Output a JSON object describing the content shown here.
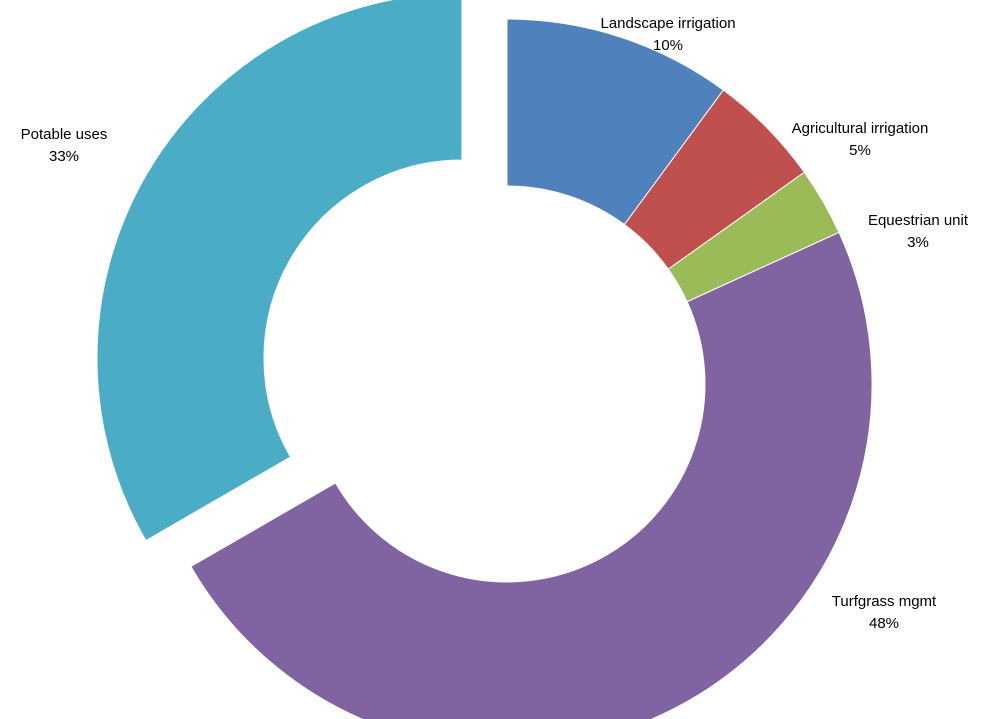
{
  "chart_data": {
    "type": "pie",
    "variant": "donut",
    "exploded": [
      "Potable uses"
    ],
    "title": "",
    "legend": "none",
    "categories": [
      "Landscape irrigation",
      "Agricultural irrigation",
      "Equestrian unit",
      "Turfgrass mgmt",
      "Potable uses"
    ],
    "values": [
      10,
      5,
      3,
      48,
      33
    ],
    "value_labels": [
      "10%",
      "5%",
      "3%",
      "48%",
      "33%"
    ],
    "colors": [
      "#4F81BD",
      "#C0504D",
      "#9BBB59",
      "#8064A2",
      "#4BACC6"
    ]
  }
}
